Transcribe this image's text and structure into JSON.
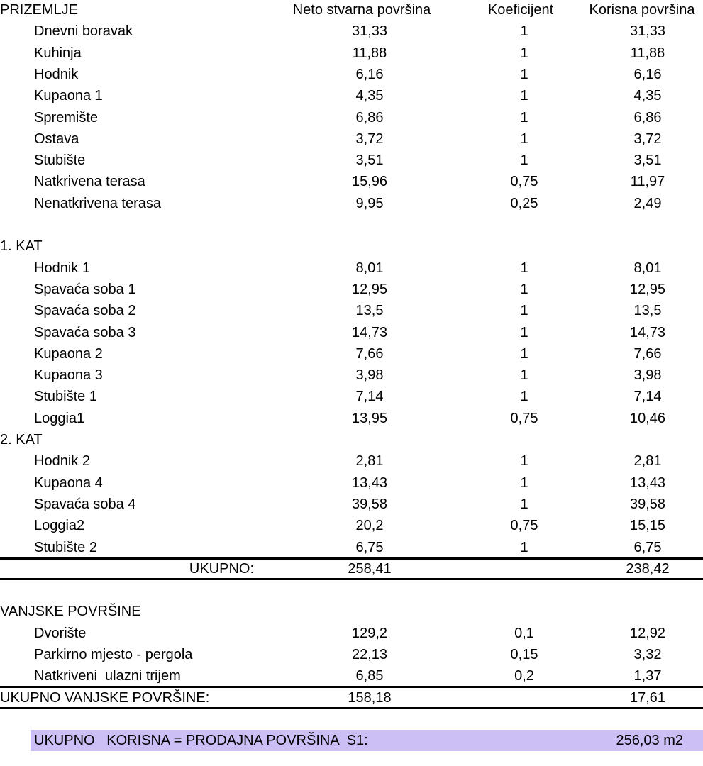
{
  "header": {
    "section": "PRIZEMLJE",
    "col_neto": "Neto stvarna površina",
    "col_koef": "Koeficijent",
    "col_korisna": "Korisna površina"
  },
  "sections": [
    {
      "title": "PRIZEMLJE",
      "items": [
        {
          "name": "Dnevni boravak",
          "neto": "31,33",
          "koef": "1",
          "korisna": "31,33"
        },
        {
          "name": "Kuhinja",
          "neto": "11,88",
          "koef": "1",
          "korisna": "11,88"
        },
        {
          "name": "Hodnik",
          "neto": "6,16",
          "koef": "1",
          "korisna": "6,16"
        },
        {
          "name": "Kupaona 1",
          "neto": "4,35",
          "koef": "1",
          "korisna": "4,35"
        },
        {
          "name": "Spremište",
          "neto": "6,86",
          "koef": "1",
          "korisna": "6,86"
        },
        {
          "name": "Ostava",
          "neto": "3,72",
          "koef": "1",
          "korisna": "3,72"
        },
        {
          "name": "Stubište",
          "neto": "3,51",
          "koef": "1",
          "korisna": "3,51"
        },
        {
          "name": "Natkrivena terasa",
          "neto": "15,96",
          "koef": "0,75",
          "korisna": "11,97"
        },
        {
          "name": "Nenatkrivena terasa",
          "neto": "9,95",
          "koef": "0,25",
          "korisna": "2,49"
        }
      ]
    },
    {
      "title": "1. KAT",
      "items": [
        {
          "name": "Hodnik 1",
          "neto": "8,01",
          "koef": "1",
          "korisna": "8,01"
        },
        {
          "name": "Spavaća soba 1",
          "neto": "12,95",
          "koef": "1",
          "korisna": "12,95"
        },
        {
          "name": "Spavaća soba 2",
          "neto": "13,5",
          "koef": "1",
          "korisna": "13,5"
        },
        {
          "name": "Spavaća soba 3",
          "neto": "14,73",
          "koef": "1",
          "korisna": "14,73"
        },
        {
          "name": "Kupaona 2",
          "neto": "7,66",
          "koef": "1",
          "korisna": "7,66"
        },
        {
          "name": "Kupaona 3",
          "neto": "3,98",
          "koef": "1",
          "korisna": "3,98"
        },
        {
          "name": "Stubište 1",
          "neto": "7,14",
          "koef": "1",
          "korisna": "7,14"
        },
        {
          "name": "Loggia1",
          "neto": "13,95",
          "koef": "0,75",
          "korisna": "10,46"
        }
      ]
    },
    {
      "title": "2. KAT",
      "items": [
        {
          "name": "Hodnik 2",
          "neto": "2,81",
          "koef": "1",
          "korisna": "2,81"
        },
        {
          "name": "Kupaona 4",
          "neto": "13,43",
          "koef": "1",
          "korisna": "13,43"
        },
        {
          "name": "Spavaća soba 4",
          "neto": "39,58",
          "koef": "1",
          "korisna": "39,58"
        },
        {
          "name": "Loggia2",
          "neto": "20,2",
          "koef": "0,75",
          "korisna": "15,15"
        },
        {
          "name": "Stubište 2",
          "neto": "6,75",
          "koef": "1",
          "korisna": "6,75"
        }
      ]
    }
  ],
  "total": {
    "label": "UKUPNO:",
    "neto": "258,41",
    "korisna": "238,42"
  },
  "outdoor": {
    "title": "VANJSKE POVRŠINE",
    "items": [
      {
        "name": "Dvorište",
        "neto": "129,2",
        "koef": "0,1",
        "korisna": "12,92"
      },
      {
        "name": "Parkirno mjesto - pergola",
        "neto": "22,13",
        "koef": "0,15",
        "korisna": "3,32"
      },
      {
        "name": "Natkriveni  ulazni trijem",
        "neto": "6,85",
        "koef": "0,2",
        "korisna": "1,37"
      }
    ],
    "total": {
      "label": "UKUPNO VANJSKE POVRŠINE:",
      "neto": "158,18",
      "korisna": "17,61"
    }
  },
  "grand_total": {
    "label": "UKUPNO   KORISNA = PRODAJNA POVRŠINA  S1:",
    "value": "256,03 m2",
    "highlight": "#cbbff5"
  }
}
